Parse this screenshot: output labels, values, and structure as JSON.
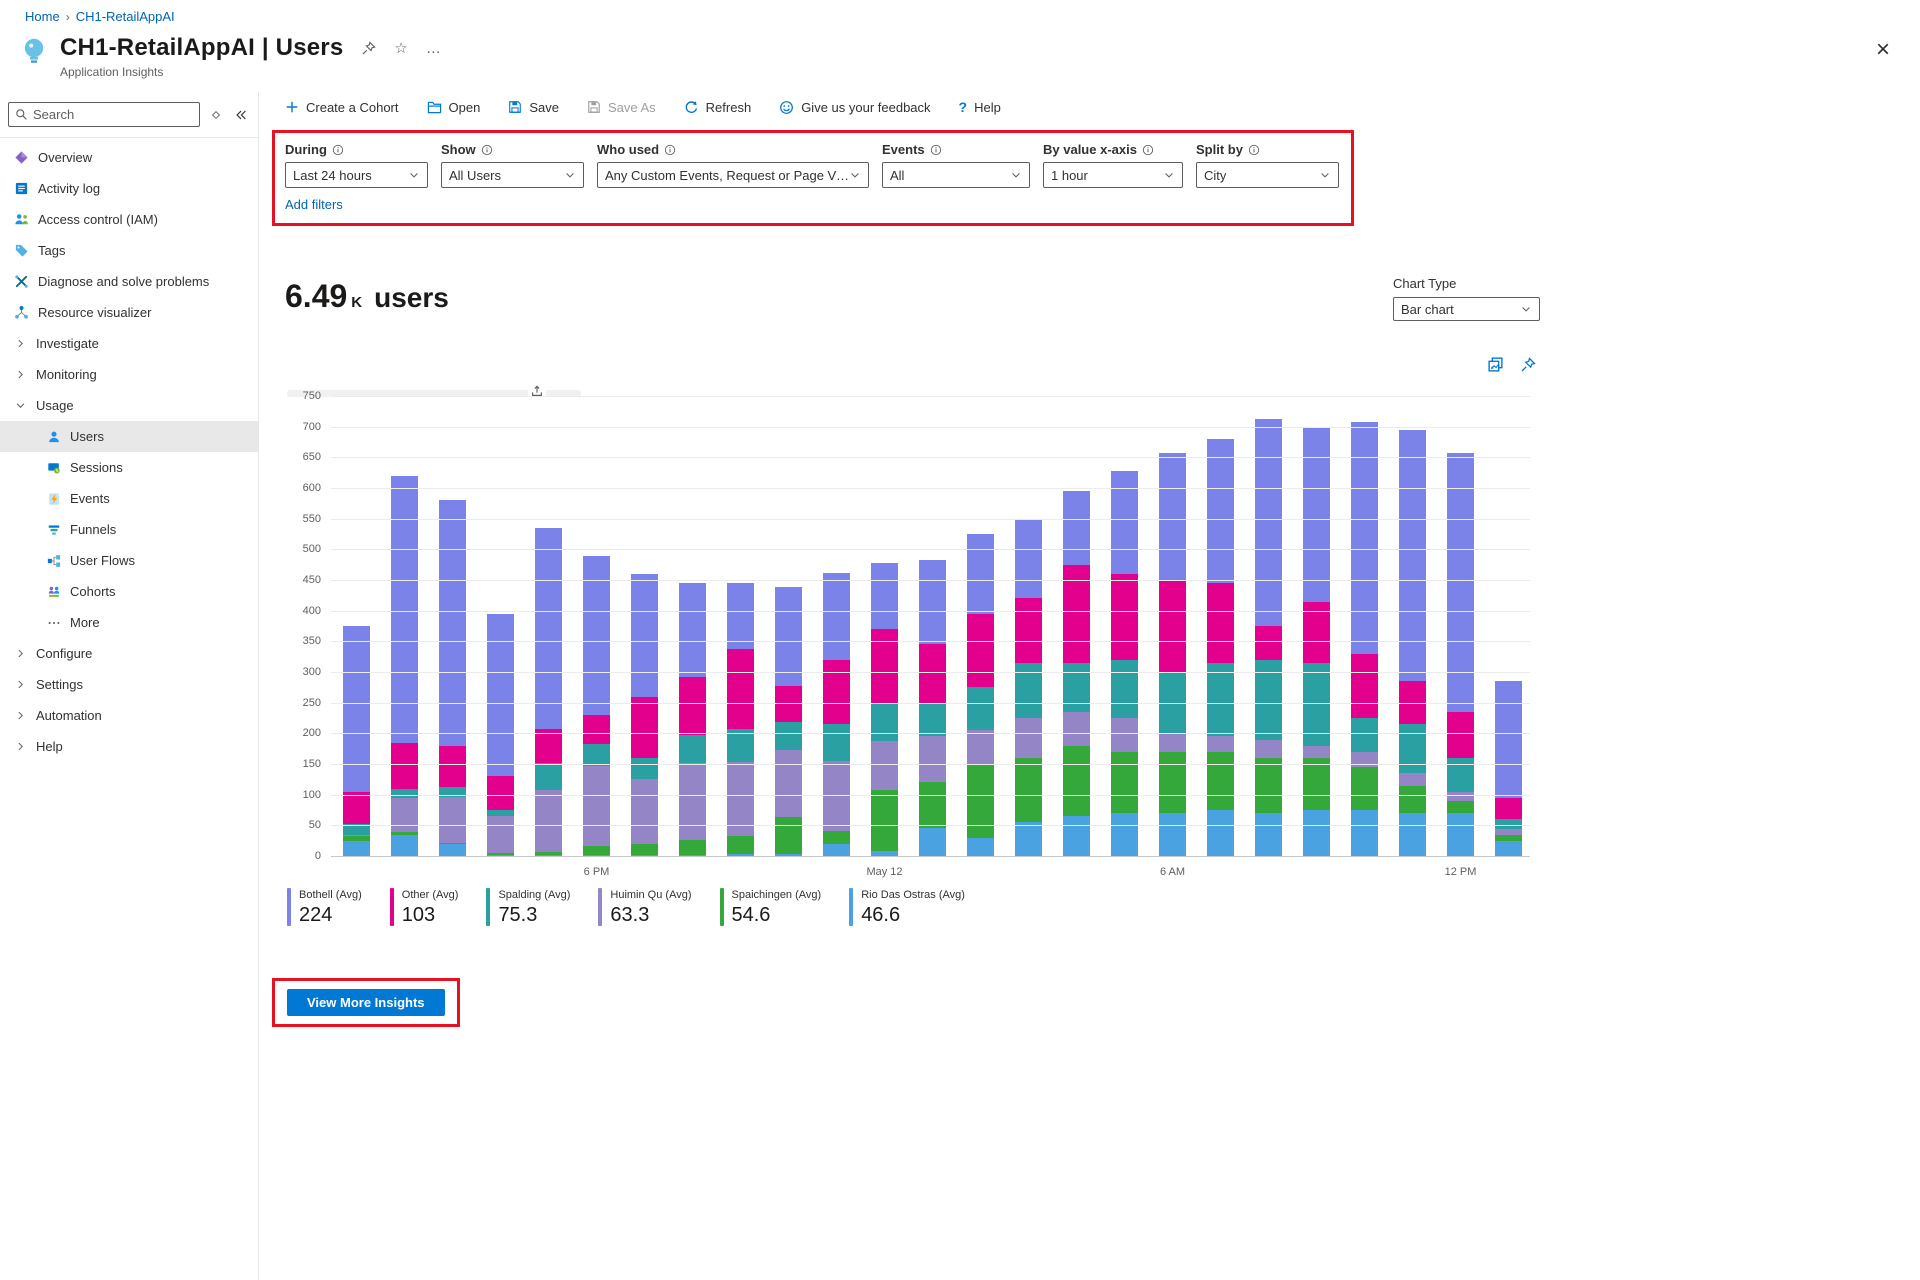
{
  "colors": {
    "accent_blue": "#0078d4",
    "link_blue": "#0065b3",
    "highlight_red": "#e81123"
  },
  "breadcrumb": {
    "items": [
      {
        "label": "Home"
      },
      {
        "label": "CH1-RetailAppAI"
      }
    ]
  },
  "header": {
    "title": "CH1-RetailAppAI | Users",
    "subtitle": "Application Insights"
  },
  "sidebar": {
    "search_placeholder": "Search",
    "items": [
      {
        "label": "Overview",
        "icon": "overview-icon",
        "type": "item"
      },
      {
        "label": "Activity log",
        "icon": "activity-log-icon",
        "type": "item"
      },
      {
        "label": "Access control (IAM)",
        "icon": "iam-icon",
        "type": "item"
      },
      {
        "label": "Tags",
        "icon": "tags-icon",
        "type": "item"
      },
      {
        "label": "Diagnose and solve problems",
        "icon": "diagnose-icon",
        "type": "item"
      },
      {
        "label": "Resource visualizer",
        "icon": "resource-visualizer-icon",
        "type": "item"
      },
      {
        "label": "Investigate",
        "type": "group",
        "state": "collapsed"
      },
      {
        "label": "Monitoring",
        "type": "group",
        "state": "collapsed"
      },
      {
        "label": "Usage",
        "type": "group",
        "state": "expanded",
        "children": [
          {
            "label": "Users",
            "icon": "users-icon",
            "selected": true
          },
          {
            "label": "Sessions",
            "icon": "sessions-icon"
          },
          {
            "label": "Events",
            "icon": "events-icon"
          },
          {
            "label": "Funnels",
            "icon": "funnels-icon"
          },
          {
            "label": "User Flows",
            "icon": "user-flows-icon"
          },
          {
            "label": "Cohorts",
            "icon": "cohorts-icon"
          },
          {
            "label": "More",
            "icon": "more-icon"
          }
        ]
      },
      {
        "label": "Configure",
        "type": "group",
        "state": "collapsed"
      },
      {
        "label": "Settings",
        "type": "group",
        "state": "collapsed"
      },
      {
        "label": "Automation",
        "type": "group",
        "state": "collapsed"
      },
      {
        "label": "Help",
        "type": "group",
        "state": "collapsed"
      }
    ]
  },
  "toolbar": {
    "buttons": [
      {
        "label": "Create a Cohort",
        "icon": "plus-icon"
      },
      {
        "label": "Open",
        "icon": "folder-icon"
      },
      {
        "label": "Save",
        "icon": "save-icon"
      },
      {
        "label": "Save As",
        "icon": "save-as-icon",
        "disabled": true
      },
      {
        "label": "Refresh",
        "icon": "refresh-icon"
      },
      {
        "label": "Give us your feedback",
        "icon": "smiley-icon"
      },
      {
        "label": "Help",
        "icon": "help-icon"
      }
    ]
  },
  "filters": {
    "fields": [
      {
        "label": "During",
        "value": "Last 24 hours"
      },
      {
        "label": "Show",
        "value": "All Users"
      },
      {
        "label": "Who used",
        "value": "Any Custom Events, Request or Page View"
      },
      {
        "label": "Events",
        "value": "All"
      },
      {
        "label": "By value x-axis",
        "value": "1 hour"
      },
      {
        "label": "Split by",
        "value": "City"
      }
    ],
    "add_filters_label": "Add filters"
  },
  "main": {
    "metric_value": "6.49",
    "metric_unit": "K",
    "metric_label": "users",
    "chart_type_label": "Chart Type",
    "chart_type_value": "Bar chart",
    "view_more_label": "View More Insights"
  },
  "chart_data": {
    "type": "bar",
    "stacked": true,
    "title": "6.49 K users",
    "xlabel": "",
    "ylabel": "",
    "ylim": [
      0,
      750
    ],
    "ytick_interval": 50,
    "grid": true,
    "legend_position": "bottom",
    "x_unit": "1 hour",
    "n_bars": 25,
    "x_ticks": [
      {
        "index": 5,
        "label": "6 PM"
      },
      {
        "index": 11,
        "label": "May 12"
      },
      {
        "index": 17,
        "label": "6 AM"
      },
      {
        "index": 23,
        "label": "12 PM"
      }
    ],
    "series": [
      {
        "name": "Rio Das Ostras (Avg)",
        "color": "#4aa3e0",
        "values": [
          25,
          35,
          20,
          2,
          2,
          2,
          2,
          2,
          3,
          3,
          20,
          8,
          45,
          30,
          55,
          65,
          70,
          70,
          75,
          70,
          75,
          75,
          70,
          70,
          25
        ]
      },
      {
        "name": "Spaichingen (Avg)",
        "color": "#35a83b",
        "values": [
          8,
          4,
          2,
          3,
          5,
          15,
          18,
          25,
          30,
          60,
          20,
          100,
          75,
          120,
          105,
          115,
          100,
          100,
          95,
          90,
          85,
          70,
          45,
          20,
          10
        ]
      },
      {
        "name": "Huimin Qu (Avg)",
        "color": "#9485c6",
        "values": [
          2,
          55,
          75,
          60,
          100,
          130,
          105,
          125,
          120,
          110,
          115,
          80,
          75,
          55,
          65,
          55,
          55,
          30,
          25,
          30,
          20,
          25,
          20,
          15,
          10
        ]
      },
      {
        "name": "Spalding (Avg)",
        "color": "#2aa0a2",
        "values": [
          18,
          15,
          15,
          10,
          45,
          35,
          35,
          45,
          55,
          45,
          60,
          62,
          55,
          70,
          90,
          80,
          95,
          100,
          120,
          130,
          135,
          55,
          80,
          55,
          15
        ]
      },
      {
        "name": "Other (Avg)",
        "color": "#e3008c",
        "values": [
          52,
          75,
          68,
          55,
          55,
          48,
          100,
          95,
          130,
          60,
          105,
          120,
          95,
          120,
          105,
          160,
          140,
          150,
          130,
          55,
          100,
          105,
          70,
          75,
          35
        ]
      },
      {
        "name": "Bothell (Avg)",
        "color": "#7b83e8",
        "values": [
          270,
          436,
          400,
          265,
          328,
          260,
          200,
          153,
          107,
          160,
          142,
          108,
          137,
          130,
          130,
          120,
          168,
          208,
          235,
          337,
          285,
          378,
          410,
          423,
          190
        ]
      }
    ],
    "legend": [
      {
        "name": "Bothell (Avg)",
        "value": "224",
        "color": "#7b83e8"
      },
      {
        "name": "Other (Avg)",
        "value": "103",
        "color": "#e3008c"
      },
      {
        "name": "Spalding (Avg)",
        "value": "75.3",
        "color": "#2aa0a2"
      },
      {
        "name": "Huimin Qu (Avg)",
        "value": "63.3",
        "color": "#9485c6"
      },
      {
        "name": "Spaichingen (Avg)",
        "value": "54.6",
        "color": "#35a83b"
      },
      {
        "name": "Rio Das Ostras (Avg)",
        "value": "46.6",
        "color": "#4aa3e0"
      }
    ]
  }
}
